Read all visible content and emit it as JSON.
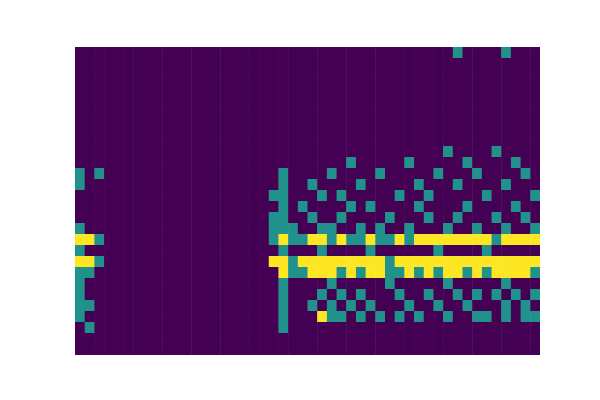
{
  "chart_data": {
    "type": "heatmap",
    "tick_labels": false,
    "zlim": [
      0,
      1
    ],
    "z": [
      [
        0,
        0,
        0,
        0,
        0,
        0,
        0,
        0,
        0,
        0,
        0,
        0,
        0,
        0,
        0,
        0,
        0,
        0,
        0,
        0,
        0,
        0,
        0,
        0,
        0,
        0,
        0,
        0,
        0,
        0,
        0,
        0,
        0,
        0,
        0,
        0,
        0,
        0,
        0,
        0.5,
        0,
        0,
        0,
        0,
        0.5,
        0,
        0,
        0
      ],
      [
        0,
        0,
        0,
        0,
        0,
        0,
        0,
        0,
        0,
        0,
        0,
        0,
        0,
        0,
        0,
        0,
        0,
        0,
        0,
        0,
        0,
        0,
        0,
        0,
        0,
        0,
        0,
        0,
        0,
        0,
        0,
        0,
        0,
        0,
        0,
        0,
        0,
        0,
        0,
        0,
        0,
        0,
        0,
        0,
        0,
        0,
        0,
        0
      ],
      [
        0,
        0,
        0,
        0,
        0,
        0,
        0,
        0,
        0,
        0,
        0,
        0,
        0,
        0,
        0,
        0,
        0,
        0,
        0,
        0,
        0,
        0,
        0,
        0,
        0,
        0,
        0,
        0,
        0,
        0,
        0,
        0,
        0,
        0,
        0,
        0,
        0,
        0,
        0,
        0,
        0,
        0,
        0,
        0,
        0,
        0,
        0,
        0
      ],
      [
        0,
        0,
        0,
        0,
        0,
        0,
        0,
        0,
        0,
        0,
        0,
        0,
        0,
        0,
        0,
        0,
        0,
        0,
        0,
        0,
        0,
        0,
        0,
        0,
        0,
        0,
        0,
        0,
        0,
        0,
        0,
        0,
        0,
        0,
        0,
        0,
        0,
        0,
        0,
        0,
        0,
        0,
        0,
        0,
        0,
        0,
        0,
        0
      ],
      [
        0,
        0,
        0,
        0,
        0,
        0,
        0,
        0,
        0,
        0,
        0,
        0,
        0,
        0,
        0,
        0,
        0,
        0,
        0,
        0,
        0,
        0,
        0,
        0,
        0,
        0,
        0,
        0,
        0,
        0,
        0,
        0,
        0,
        0,
        0,
        0,
        0,
        0,
        0,
        0,
        0,
        0,
        0,
        0,
        0,
        0,
        0,
        0
      ],
      [
        0,
        0,
        0,
        0,
        0,
        0,
        0,
        0,
        0,
        0,
        0,
        0,
        0,
        0,
        0,
        0,
        0,
        0,
        0,
        0,
        0,
        0,
        0,
        0,
        0,
        0,
        0,
        0,
        0,
        0,
        0,
        0,
        0,
        0,
        0,
        0,
        0,
        0,
        0,
        0,
        0,
        0,
        0,
        0,
        0,
        0,
        0,
        0
      ],
      [
        0,
        0,
        0,
        0,
        0,
        0,
        0,
        0,
        0,
        0,
        0,
        0,
        0,
        0,
        0,
        0,
        0,
        0,
        0,
        0,
        0,
        0,
        0,
        0,
        0,
        0,
        0,
        0,
        0,
        0,
        0,
        0,
        0,
        0,
        0,
        0,
        0,
        0,
        0,
        0,
        0,
        0,
        0,
        0,
        0,
        0,
        0,
        0
      ],
      [
        0,
        0,
        0,
        0,
        0,
        0,
        0,
        0,
        0,
        0,
        0,
        0,
        0,
        0,
        0,
        0,
        0,
        0,
        0,
        0,
        0,
        0,
        0,
        0,
        0,
        0,
        0,
        0,
        0,
        0,
        0,
        0,
        0,
        0,
        0,
        0,
        0,
        0,
        0,
        0,
        0,
        0,
        0,
        0,
        0,
        0,
        0,
        0
      ],
      [
        0,
        0,
        0,
        0,
        0,
        0,
        0,
        0,
        0,
        0,
        0,
        0,
        0,
        0,
        0,
        0,
        0,
        0,
        0,
        0,
        0,
        0,
        0,
        0,
        0,
        0,
        0,
        0,
        0,
        0,
        0,
        0,
        0,
        0,
        0,
        0,
        0,
        0,
        0,
        0,
        0,
        0,
        0,
        0,
        0,
        0,
        0,
        0
      ],
      [
        0,
        0,
        0,
        0,
        0,
        0,
        0,
        0,
        0,
        0,
        0,
        0,
        0,
        0,
        0,
        0,
        0,
        0,
        0,
        0,
        0,
        0,
        0,
        0,
        0,
        0,
        0,
        0,
        0,
        0,
        0,
        0,
        0,
        0,
        0,
        0,
        0,
        0,
        0.5,
        0,
        0,
        0,
        0,
        0.5,
        0,
        0,
        0,
        0
      ],
      [
        0,
        0,
        0,
        0,
        0,
        0,
        0,
        0,
        0,
        0,
        0,
        0,
        0,
        0,
        0,
        0,
        0,
        0,
        0,
        0,
        0,
        0,
        0,
        0,
        0,
        0,
        0,
        0,
        0.5,
        0,
        0,
        0,
        0,
        0,
        0.5,
        0,
        0,
        0,
        0,
        0,
        0.5,
        0,
        0,
        0,
        0,
        0.5,
        0,
        0
      ],
      [
        0.5,
        0,
        0.5,
        0,
        0,
        0,
        0,
        0,
        0,
        0,
        0,
        0,
        0,
        0,
        0,
        0,
        0,
        0,
        0,
        0,
        0,
        0.5,
        0,
        0,
        0,
        0,
        0.5,
        0,
        0,
        0,
        0,
        0.5,
        0,
        0,
        0,
        0,
        0,
        0.5,
        0,
        0,
        0,
        0.5,
        0,
        0,
        0,
        0,
        0.5,
        0
      ],
      [
        0.5,
        0,
        0,
        0,
        0,
        0,
        0,
        0,
        0,
        0,
        0,
        0,
        0,
        0,
        0,
        0,
        0,
        0,
        0,
        0,
        0,
        0.5,
        0,
        0,
        0.5,
        0,
        0,
        0,
        0,
        0.5,
        0,
        0,
        0,
        0,
        0,
        0.5,
        0,
        0,
        0,
        0.5,
        0,
        0,
        0,
        0,
        0.5,
        0,
        0,
        0
      ],
      [
        0,
        0,
        0,
        0,
        0,
        0,
        0,
        0,
        0,
        0,
        0,
        0,
        0,
        0,
        0,
        0,
        0,
        0,
        0,
        0,
        0.5,
        0.5,
        0,
        0,
        0,
        0.5,
        0,
        0.5,
        0,
        0,
        0,
        0,
        0,
        0.5,
        0,
        0,
        0.5,
        0,
        0,
        0,
        0,
        0,
        0.5,
        0,
        0,
        0,
        0,
        0.5
      ],
      [
        0,
        0,
        0,
        0,
        0,
        0,
        0,
        0,
        0,
        0,
        0,
        0,
        0,
        0,
        0,
        0,
        0,
        0,
        0,
        0,
        0,
        0.5,
        0,
        0.5,
        0,
        0,
        0,
        0,
        0.5,
        0,
        0.5,
        0,
        0,
        0,
        0,
        0.5,
        0,
        0,
        0,
        0,
        0.5,
        0,
        0,
        0,
        0,
        0.5,
        0,
        0
      ],
      [
        0,
        0,
        0,
        0,
        0,
        0,
        0,
        0,
        0,
        0,
        0,
        0,
        0,
        0,
        0,
        0,
        0,
        0,
        0,
        0,
        0.5,
        0.5,
        0,
        0,
        0.5,
        0,
        0,
        0.5,
        0,
        0,
        0,
        0,
        0.5,
        0,
        0,
        0,
        0.5,
        0,
        0,
        0.5,
        0,
        0,
        0,
        0.5,
        0,
        0,
        0.5,
        0
      ],
      [
        0.5,
        0,
        0,
        0,
        0,
        0,
        0,
        0,
        0,
        0,
        0,
        0,
        0,
        0,
        0,
        0,
        0,
        0,
        0,
        0,
        0.5,
        0.5,
        0.5,
        0,
        0,
        0.5,
        0.5,
        0,
        0,
        0.5,
        0,
        0.5,
        0,
        0,
        0.5,
        0,
        0,
        0,
        0.5,
        0,
        0,
        0.5,
        0,
        0,
        0.5,
        0,
        0,
        0.5
      ],
      [
        1,
        1,
        0.5,
        0,
        0,
        0,
        0,
        0,
        0,
        0,
        0,
        0,
        0,
        0,
        0,
        0,
        0,
        0,
        0,
        0,
        0.5,
        1,
        0.5,
        0.5,
        1,
        1,
        0.5,
        1,
        0.5,
        0.5,
        1,
        0.5,
        0.5,
        1,
        0.5,
        1,
        1,
        1,
        1,
        1,
        1,
        1,
        1,
        0.5,
        1,
        1,
        1,
        1
      ],
      [
        0.5,
        0,
        0,
        0,
        0,
        0,
        0,
        0,
        0,
        0,
        0,
        0,
        0,
        0,
        0,
        0,
        0,
        0,
        0,
        0,
        0,
        0.5,
        0,
        0,
        0,
        0.5,
        0,
        0,
        0,
        0,
        0.5,
        0,
        0,
        0,
        0,
        0,
        0,
        0.5,
        0,
        0,
        0,
        0,
        0.5,
        0,
        0,
        0,
        0,
        0
      ],
      [
        1,
        1,
        0.5,
        0,
        0,
        0,
        0,
        0,
        0,
        0,
        0,
        0,
        0,
        0,
        0,
        0,
        0,
        0,
        0,
        0,
        1,
        1,
        0.5,
        1,
        1,
        1,
        1,
        1,
        1,
        1,
        1,
        1,
        0.5,
        1,
        1,
        1,
        1,
        1,
        1,
        1,
        1,
        1,
        1,
        1,
        1,
        1,
        1,
        1
      ],
      [
        0.5,
        0.5,
        0,
        0,
        0,
        0,
        0,
        0,
        0,
        0,
        0,
        0,
        0,
        0,
        0,
        0,
        0,
        0,
        0,
        0,
        0,
        1,
        0.5,
        0.5,
        1,
        1,
        1,
        0.5,
        1,
        0.5,
        1,
        1,
        0.5,
        0.5,
        1,
        0.5,
        1,
        0.5,
        1,
        1,
        0.5,
        1,
        0.5,
        1,
        1,
        1,
        1,
        0.5
      ],
      [
        0.5,
        0,
        0,
        0,
        0,
        0,
        0,
        0,
        0,
        0,
        0,
        0,
        0,
        0,
        0,
        0,
        0,
        0,
        0,
        0,
        0,
        0.5,
        0,
        0,
        0,
        0,
        0.5,
        0,
        0,
        0,
        0,
        0,
        0.5,
        0,
        0,
        0,
        0,
        0,
        0.5,
        0,
        0,
        0,
        0,
        0,
        0.5,
        0,
        0,
        0
      ],
      [
        0.5,
        0,
        0,
        0,
        0,
        0,
        0,
        0,
        0,
        0,
        0,
        0,
        0,
        0,
        0,
        0,
        0,
        0,
        0,
        0,
        0,
        0.5,
        0,
        0,
        0,
        0.5,
        0,
        0.5,
        0,
        0.5,
        0,
        0,
        0,
        0.5,
        0,
        0,
        0.5,
        0,
        0,
        0.5,
        0,
        0.5,
        0,
        0.5,
        0,
        0.5,
        0,
        0.5
      ],
      [
        0.5,
        0.5,
        0,
        0,
        0,
        0,
        0,
        0,
        0,
        0,
        0,
        0,
        0,
        0,
        0,
        0,
        0,
        0,
        0,
        0,
        0,
        0.5,
        0,
        0,
        0.5,
        0,
        0.5,
        0,
        0.5,
        0,
        0.5,
        0,
        0,
        0,
        0.5,
        0,
        0,
        0.5,
        0,
        0,
        0.5,
        0,
        0,
        0,
        0.5,
        0,
        0.5,
        0
      ],
      [
        0.5,
        0,
        0,
        0,
        0,
        0,
        0,
        0,
        0,
        0,
        0,
        0,
        0,
        0,
        0,
        0,
        0,
        0,
        0,
        0,
        0,
        0.5,
        0,
        0,
        0,
        1,
        0.5,
        0.5,
        0,
        0.5,
        0,
        0.5,
        0,
        0.5,
        0,
        0.5,
        0,
        0,
        0.5,
        0,
        0,
        0.5,
        0.5,
        0,
        0.5,
        0,
        0.5,
        0.5
      ],
      [
        0,
        0.5,
        0,
        0,
        0,
        0,
        0,
        0,
        0,
        0,
        0,
        0,
        0,
        0,
        0,
        0,
        0,
        0,
        0,
        0,
        0,
        0.5,
        0,
        0,
        0,
        0,
        0,
        0,
        0,
        0,
        0,
        0,
        0,
        0,
        0,
        0,
        0,
        0,
        0,
        0,
        0,
        0,
        0,
        0,
        0,
        0,
        0,
        0
      ],
      [
        0,
        0,
        0,
        0,
        0,
        0,
        0,
        0,
        0,
        0,
        0,
        0,
        0,
        0,
        0,
        0,
        0,
        0,
        0,
        0,
        0,
        0,
        0,
        0,
        0,
        0,
        0,
        0,
        0,
        0,
        0,
        0,
        0,
        0,
        0,
        0,
        0,
        0,
        0,
        0,
        0,
        0,
        0,
        0,
        0,
        0,
        0,
        0
      ],
      [
        0,
        0,
        0,
        0,
        0,
        0,
        0,
        0,
        0,
        0,
        0,
        0,
        0,
        0,
        0,
        0,
        0,
        0,
        0,
        0,
        0,
        0,
        0,
        0,
        0,
        0,
        0,
        0,
        0,
        0,
        0,
        0,
        0,
        0,
        0,
        0,
        0,
        0,
        0,
        0,
        0,
        0,
        0,
        0,
        0,
        0,
        0,
        0
      ]
    ]
  }
}
